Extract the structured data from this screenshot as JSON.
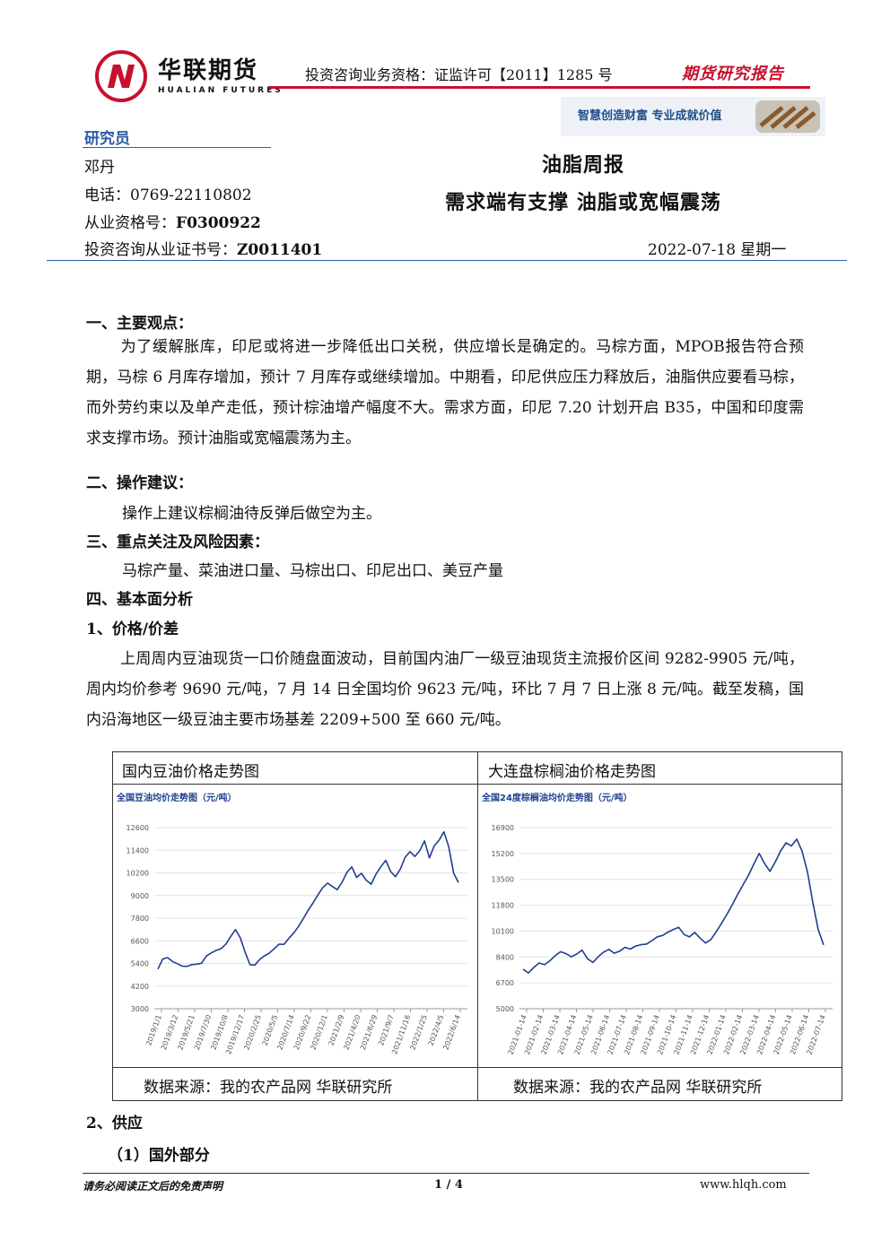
{
  "header": {
    "brand_cn": "华联期货",
    "brand_en": "HUALIAN FUTURES",
    "license": "投资咨询业务资格：证监许可【2011】1285 号",
    "report_type": "期货研究报告",
    "slogan": "智慧创造财富 专业成就价值"
  },
  "researcher": {
    "label": "研究员",
    "name": "邓丹",
    "phone": "电话：0769-22110802",
    "qualification_label": "从业资格号：",
    "qualification_value": "F0300922",
    "license_label": "投资咨询从业证书号：",
    "license_value": "Z0011401"
  },
  "report": {
    "title": "油脂周报",
    "subtitle": "需求端有支撑 油脂或宽幅震荡",
    "date": "2022-07-18 星期一"
  },
  "sections": {
    "s1_title": "一、主要观点：",
    "s1_text": "为了缓解胀库，印尼或将进一步降低出口关税，供应增长是确定的。马棕方面，MPOB报告符合预期，马棕 6 月库存增加，预计 7 月库存或继续增加。中期看，印尼供应压力释放后，油脂供应要看马棕，而外劳约束以及单产走低，预计棕油增产幅度不大。需求方面，印尼 7.20 计划开启 B35，中国和印度需求支撑市场。预计油脂或宽幅震荡为主。",
    "s2_title": "二、操作建议：",
    "s2_text": "操作上建议棕榈油待反弹后做空为主。",
    "s3_title": "三、重点关注及风险因素：",
    "s3_text": "马棕产量、菜油进口量、马棕出口、印尼出口、美豆产量",
    "s4_title": "四、基本面分析",
    "s4_1_title": "1、价格/价差",
    "s4_1_text": "上周周内豆油现货一口价随盘面波动，目前国内油厂一级豆油现货主流报价区间 9282-9905 元/吨，周内均价参考 9690 元/吨，7 月 14 日全国均价 9623 元/吨，环比 7 月 7 日上涨 8 元/吨。截至发稿，国内沿海地区一级豆油主要市场基差 2209+500 至 660 元/吨。",
    "s4_2_title": "2、供应",
    "s4_2_1_title": "（1）国外部分"
  },
  "table": {
    "left_title": "国内豆油价格走势图",
    "right_title": "大连盘棕榈油价格走势图",
    "left_source": "数据来源：我的农产品网 华联研究所",
    "right_source": "数据来源：我的农产品网 华联研究所"
  },
  "chart_data": [
    {
      "type": "line",
      "title": "全国豆油均价走势图（元/吨）",
      "color": "#1f3f8f",
      "ylim": [
        3000,
        12600
      ],
      "yticks": [
        3000,
        4200,
        5400,
        6600,
        7800,
        9000,
        10200,
        11400,
        12600
      ],
      "xticks": [
        "2019/1/1",
        "2019/3/12",
        "2019/5/21",
        "2019/7/30",
        "2019/10/8",
        "2019/12/17",
        "2020/2/25",
        "2020/5/5",
        "2020/7/14",
        "2020/9/22",
        "2020/12/1",
        "2021/2/9",
        "2021/4/20",
        "2021/6/29",
        "2021/9/7",
        "2021/11/16",
        "2022/1/25",
        "2022/4/5",
        "2022/6/14"
      ],
      "values": [
        5100,
        5600,
        5700,
        5500,
        5400,
        5300,
        5250,
        5300,
        5350,
        5400,
        5800,
        6000,
        6100,
        6150,
        6400,
        6800,
        7200,
        6800,
        6000,
        5300,
        5300,
        5600,
        5800,
        6000,
        6200,
        6400,
        6400,
        6700,
        7000,
        7400,
        7800,
        8200,
        8600,
        9000,
        9400,
        9700,
        9500,
        9300,
        9700,
        10200,
        10500,
        10000,
        10200,
        9800,
        9600,
        10100,
        10500,
        10900,
        10300,
        10000,
        10400,
        11000,
        11300,
        11100,
        11400,
        11900,
        11000,
        11600,
        11900,
        12400,
        11600,
        10200,
        9700
      ]
    },
    {
      "type": "line",
      "title": "全国24度棕榈油均价走势图（元/吨）",
      "color": "#1f3f8f",
      "ylim": [
        5000,
        16900
      ],
      "yticks": [
        5000,
        6700,
        8400,
        10100,
        11800,
        13500,
        15200,
        16900
      ],
      "xticks": [
        "2021-01-14",
        "2021-02-14",
        "2021-03-14",
        "2021-04-14",
        "2021-05-14",
        "2021-06-14",
        "2021-07-14",
        "2021-08-14",
        "2021-09-14",
        "2021-10-14",
        "2021-11-14",
        "2021-12-14",
        "2022-01-14",
        "2022-02-14",
        "2022-03-14",
        "2022-04-14",
        "2022-05-14",
        "2022-06-14",
        "2022-07-14"
      ],
      "values": [
        7600,
        7300,
        7700,
        8000,
        7900,
        8200,
        8500,
        8700,
        8600,
        8400,
        8600,
        8900,
        8300,
        8000,
        8400,
        8700,
        8900,
        8700,
        8800,
        9000,
        8900,
        9100,
        9200,
        9300,
        9500,
        9700,
        9800,
        10000,
        10200,
        10400,
        9900,
        9700,
        10000,
        9600,
        9300,
        9600,
        10100,
        10600,
        11200,
        11800,
        12500,
        13200,
        13800,
        14500,
        15200,
        14500,
        14000,
        14700,
        15400,
        15900,
        15700,
        16100,
        15300,
        14000,
        12000,
        10200,
        9200
      ]
    }
  ]
}
